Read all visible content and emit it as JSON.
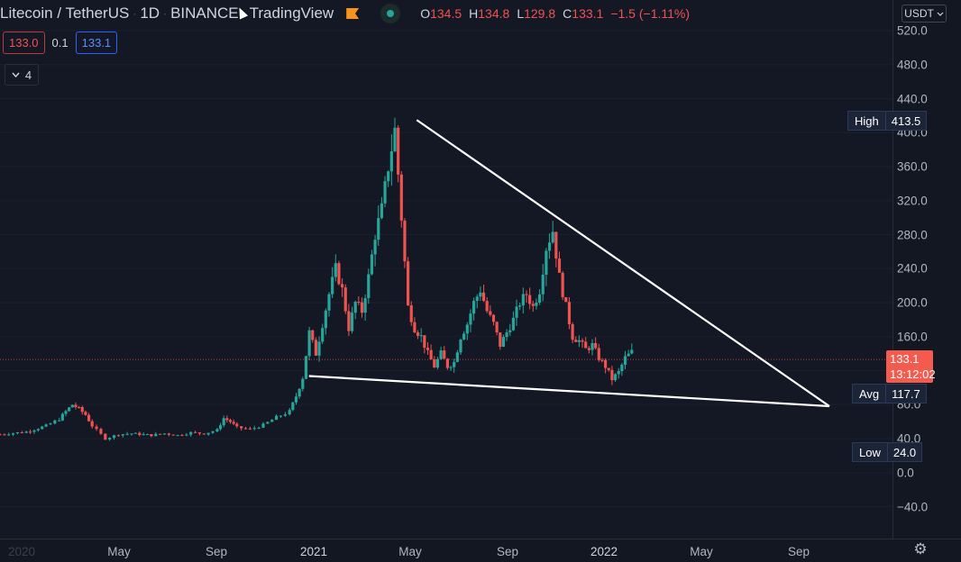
{
  "header": {
    "symbol": "Litecoin / TetherUS",
    "interval": "1D",
    "exchange": "BINANCE",
    "source": "TradingView",
    "ohlc": {
      "o_label": "O",
      "o": "134.5",
      "h_label": "H",
      "h": "134.8",
      "l_label": "L",
      "l": "129.8",
      "c_label": "C",
      "c": "133.1",
      "change": "−1.5 (−1.11%)"
    }
  },
  "order": {
    "sell": "133.0",
    "spread": "0.1",
    "buy": "133.1"
  },
  "indicators": {
    "count": "4"
  },
  "price_scale": {
    "currency": "USDT",
    "ticks": [
      "520.0",
      "480.0",
      "440.0",
      "400.0",
      "360.0",
      "320.0",
      "280.0",
      "240.0",
      "200.0",
      "160.0",
      "120.0",
      "80.0",
      "40.0",
      "0.0",
      "−40.0"
    ],
    "high_label": "High",
    "high_value": "413.5",
    "avg_label": "Avg",
    "avg_value": "117.7",
    "low_label": "Low",
    "low_value": "24.0",
    "current_price": "133.1",
    "countdown": "13:12:02"
  },
  "time_axis": [
    "2020",
    "May",
    "Sep",
    "2021",
    "May",
    "Sep",
    "2022",
    "May",
    "Sep"
  ],
  "colors": {
    "up": "#26a69a",
    "down": "#ef5350",
    "background": "#131722",
    "accent": "#f35b4e",
    "trendline": "#ffffff"
  },
  "chart_data": {
    "type": "candlestick",
    "symbol": "LTCUSDT",
    "ylim": [
      -60,
      560
    ],
    "price_series": [
      [
        0,
        45
      ],
      [
        4,
        48
      ],
      [
        7,
        55
      ],
      [
        9,
        63
      ],
      [
        10,
        72
      ],
      [
        11,
        80
      ],
      [
        12,
        75
      ],
      [
        13,
        68
      ],
      [
        14,
        55
      ],
      [
        16,
        40
      ],
      [
        18,
        45
      ],
      [
        20,
        46
      ],
      [
        23,
        44
      ],
      [
        25,
        46
      ],
      [
        27,
        44
      ],
      [
        29,
        47
      ],
      [
        31,
        46
      ],
      [
        33,
        50
      ],
      [
        34,
        64
      ],
      [
        35,
        60
      ],
      [
        36,
        53
      ],
      [
        38,
        51
      ],
      [
        40,
        56
      ],
      [
        42,
        65
      ],
      [
        44,
        72
      ],
      [
        45,
        90
      ],
      [
        46,
        112
      ],
      [
        47,
        165
      ],
      [
        48,
        140
      ],
      [
        49,
        175
      ],
      [
        50,
        210
      ],
      [
        51,
        240
      ],
      [
        52,
        215
      ],
      [
        53,
        170
      ],
      [
        54,
        200
      ],
      [
        55,
        190
      ],
      [
        56,
        230
      ],
      [
        57,
        280
      ],
      [
        58,
        310
      ],
      [
        59,
        360
      ],
      [
        60,
        403
      ],
      [
        61,
        300
      ],
      [
        62,
        195
      ],
      [
        63,
        170
      ],
      [
        64,
        160
      ],
      [
        65,
        140
      ],
      [
        66,
        125
      ],
      [
        67,
        140
      ],
      [
        68,
        125
      ],
      [
        69,
        130
      ],
      [
        70,
        160
      ],
      [
        71,
        175
      ],
      [
        72,
        200
      ],
      [
        73,
        215
      ],
      [
        74,
        190
      ],
      [
        75,
        175
      ],
      [
        76,
        150
      ],
      [
        77,
        165
      ],
      [
        78,
        180
      ],
      [
        79,
        200
      ],
      [
        80,
        210
      ],
      [
        81,
        195
      ],
      [
        82,
        215
      ],
      [
        83,
        265
      ],
      [
        84,
        285
      ],
      [
        85,
        230
      ],
      [
        86,
        195
      ],
      [
        87,
        160
      ],
      [
        88,
        155
      ],
      [
        89,
        145
      ],
      [
        90,
        150
      ],
      [
        91,
        135
      ],
      [
        92,
        125
      ],
      [
        93,
        110
      ],
      [
        94,
        118
      ],
      [
        95,
        135
      ],
      [
        96,
        142
      ]
    ],
    "trendlines": [
      {
        "from": [
          61,
          400
        ],
        "to": [
          120,
          80
        ]
      },
      {
        "from": [
          46,
          120
        ],
        "to": [
          120,
          80
        ]
      }
    ],
    "high": 413.5,
    "low": 24.0,
    "avg": 117.7,
    "last": 133.1
  }
}
